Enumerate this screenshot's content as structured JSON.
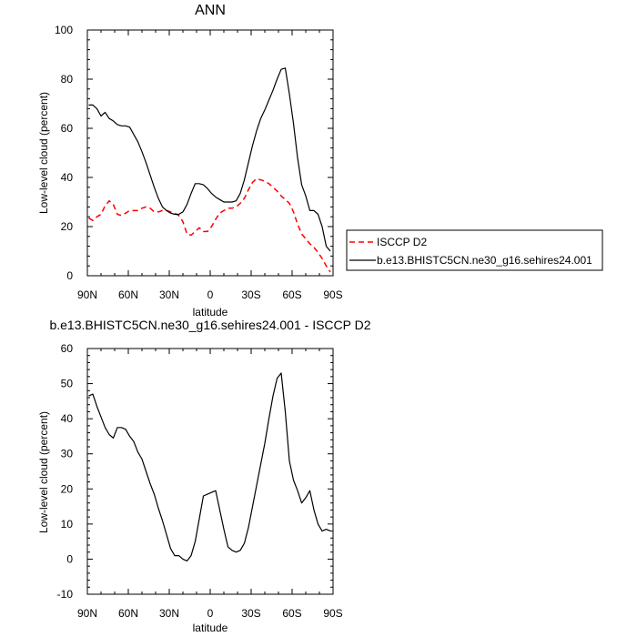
{
  "chart_data": [
    {
      "type": "line",
      "title": "ANN",
      "xlabel": "latitude",
      "ylabel": "Low-level cloud (percent)",
      "xlim": [
        90,
        -90
      ],
      "ylim": [
        0,
        100
      ],
      "x_ticks": [
        90,
        60,
        30,
        0,
        -30,
        -60,
        -90
      ],
      "x_tick_labels": [
        "90N",
        "60N",
        "30N",
        "0",
        "30S",
        "60S",
        "90S"
      ],
      "y_ticks": [
        0,
        20,
        40,
        60,
        80,
        100
      ],
      "y_tick_labels": [
        "0",
        "20",
        "40",
        "60",
        "80",
        "100"
      ],
      "grid": false,
      "legend_position": "right",
      "series": [
        {
          "name": "ISCCP D2",
          "color": "#ff0000",
          "dash": "dashed",
          "x": [
            89,
            86,
            83,
            80,
            77,
            74,
            71,
            68,
            65,
            62,
            59,
            56,
            53,
            50,
            47,
            44,
            41,
            38,
            35,
            32,
            29,
            26,
            23,
            20,
            17,
            14,
            11,
            8,
            5,
            2,
            -1,
            -4,
            -7,
            -10,
            -13,
            -16,
            -19,
            -22,
            -25,
            -28,
            -31,
            -34,
            -37,
            -40,
            -43,
            -46,
            -49,
            -52,
            -55,
            -58,
            -61,
            -64,
            -67,
            -70,
            -73,
            -76,
            -79,
            -82,
            -85,
            -88
          ],
          "values": [
            23.5,
            22.5,
            24,
            25,
            28.5,
            30.5,
            29,
            25,
            24.5,
            25.5,
            26.5,
            26.5,
            26.5,
            27.5,
            28,
            27.5,
            26,
            26,
            26.5,
            26.5,
            26,
            25.5,
            24.5,
            22,
            17,
            16.5,
            18,
            19.5,
            18,
            18,
            20,
            23,
            25.5,
            26.5,
            27.5,
            27.5,
            28,
            29.5,
            31.5,
            35,
            38,
            39.5,
            39,
            38.5,
            37.5,
            36,
            34.5,
            32.5,
            31,
            29.5,
            26,
            21,
            17,
            15,
            13,
            11.5,
            9.5,
            7,
            4,
            1.5
          ]
        },
        {
          "name": "b.e13.BHISTC5CN.ne30_g16.sehires24.001",
          "color": "#000000",
          "dash": "solid",
          "x": [
            89,
            86,
            83,
            80,
            77,
            74,
            71,
            68,
            65,
            62,
            59,
            56,
            53,
            50,
            47,
            44,
            41,
            38,
            35,
            32,
            29,
            26,
            23,
            20,
            17,
            14,
            11,
            8,
            5,
            2,
            -1,
            -4,
            -7,
            -10,
            -13,
            -16,
            -19,
            -22,
            -25,
            -28,
            -31,
            -34,
            -37,
            -40,
            -43,
            -46,
            -49,
            -52,
            -55,
            -58,
            -61,
            -64,
            -67,
            -70,
            -73,
            -76,
            -79,
            -82,
            -85,
            -88
          ],
          "values": [
            69.5,
            69.5,
            68,
            65,
            66.5,
            64,
            63,
            61.5,
            61,
            61,
            60.5,
            57.5,
            54.5,
            50.5,
            46,
            41,
            36,
            31.5,
            28,
            26.5,
            25.5,
            25,
            25,
            26,
            29,
            33.5,
            37.5,
            37.5,
            37,
            35.5,
            33.5,
            32,
            31,
            30,
            30,
            30,
            30.5,
            33.5,
            39,
            46,
            53,
            59,
            64,
            67.5,
            71.5,
            75.5,
            80,
            84,
            84.5,
            74,
            62,
            48,
            37,
            32.5,
            26.5,
            26.5,
            25,
            20,
            12,
            10
          ]
        }
      ]
    },
    {
      "type": "line",
      "title": "b.e13.BHISTC5CN.ne30_g16.sehires24.001 - ISCCP D2",
      "xlabel": "latitude",
      "ylabel": "Low-level cloud (percent)",
      "xlim": [
        90,
        -90
      ],
      "ylim": [
        -10,
        60
      ],
      "x_ticks": [
        90,
        60,
        30,
        0,
        -30,
        -60,
        -90
      ],
      "x_tick_labels": [
        "90N",
        "60N",
        "30N",
        "0",
        "30S",
        "60S",
        "90S"
      ],
      "y_ticks": [
        -10,
        0,
        10,
        20,
        30,
        40,
        50,
        60
      ],
      "y_tick_labels": [
        "-10",
        "0",
        "10",
        "20",
        "30",
        "40",
        "50",
        "60"
      ],
      "grid": false,
      "series": [
        {
          "color": "#000000",
          "dash": "solid",
          "x": [
            89,
            86,
            83,
            80,
            77,
            74,
            71,
            68,
            65,
            62,
            59,
            56,
            53,
            50,
            47,
            44,
            41,
            38,
            35,
            32,
            29,
            26,
            23,
            20,
            17,
            14,
            11,
            8,
            5,
            2,
            -1,
            -4,
            -7,
            -10,
            -13,
            -16,
            -19,
            -22,
            -25,
            -28,
            -31,
            -34,
            -37,
            -40,
            -43,
            -46,
            -49,
            -52,
            -55,
            -58,
            -61,
            -64,
            -67,
            -70,
            -73,
            -76,
            -79,
            -82,
            -85,
            -88
          ],
          "values": [
            46.5,
            47,
            43.5,
            40.5,
            37.5,
            35.5,
            34.5,
            37.5,
            37.5,
            37,
            35,
            33.5,
            30.5,
            28.5,
            25,
            21.5,
            18.5,
            14.5,
            11,
            7,
            3,
            1,
            1,
            0,
            -0.5,
            1,
            5,
            11.5,
            18,
            18.5,
            19,
            19.5,
            14,
            8.5,
            3.5,
            2.5,
            2,
            2.5,
            4.5,
            9,
            15,
            21,
            27,
            33,
            40,
            46.5,
            51.5,
            53,
            42,
            28,
            22.5,
            19.5,
            16,
            17.5,
            19.5,
            14,
            10,
            8,
            8.5,
            8
          ]
        }
      ]
    }
  ]
}
